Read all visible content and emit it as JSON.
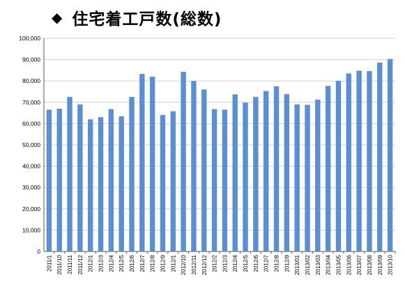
{
  "title": {
    "marker": "◆",
    "text": "住宅着工戸数(総数)"
  },
  "chart_data": {
    "type": "bar",
    "title": "住宅着工戸数(総数)",
    "xlabel": "",
    "ylabel": "",
    "ylim": [
      0,
      100000
    ],
    "yticks": [
      0,
      10000,
      20000,
      30000,
      40000,
      50000,
      60000,
      70000,
      80000,
      90000,
      100000
    ],
    "ytick_labels": [
      "0",
      "10,000",
      "20,000",
      "30,000",
      "40,000",
      "50,000",
      "60,000",
      "70,000",
      "80,000",
      "90,000",
      "100,000"
    ],
    "grid": true,
    "bar_color": "#5b8fd1",
    "categories": [
      "2011/1",
      "2011/10",
      "2011/11",
      "2011/12",
      "2012/1",
      "2012/3",
      "2012/4",
      "2012/5",
      "2012/6",
      "2012/7",
      "2012/8",
      "2012/9",
      "2012/1",
      "2012/10",
      "2012/11",
      "2012/12",
      "2012/2",
      "2012/3",
      "2012/4",
      "2012/5",
      "2012/6",
      "2012/7",
      "2012/8",
      "2012/9",
      "2013/01",
      "2013/02",
      "2013/03",
      "2013/04",
      "2013/05",
      "2013/06",
      "2013/07",
      "2013/08",
      "2013/09",
      "2013/10"
    ],
    "values": [
      66500,
      67000,
      72500,
      69000,
      62000,
      63000,
      66800,
      63400,
      72500,
      83300,
      82000,
      64000,
      65800,
      84300,
      80000,
      76000,
      66800,
      66500,
      73700,
      69800,
      72500,
      75300,
      77500,
      73800,
      69000,
      68800,
      71200,
      77700,
      80000,
      83500,
      84800,
      84600,
      88600,
      90300
    ]
  }
}
